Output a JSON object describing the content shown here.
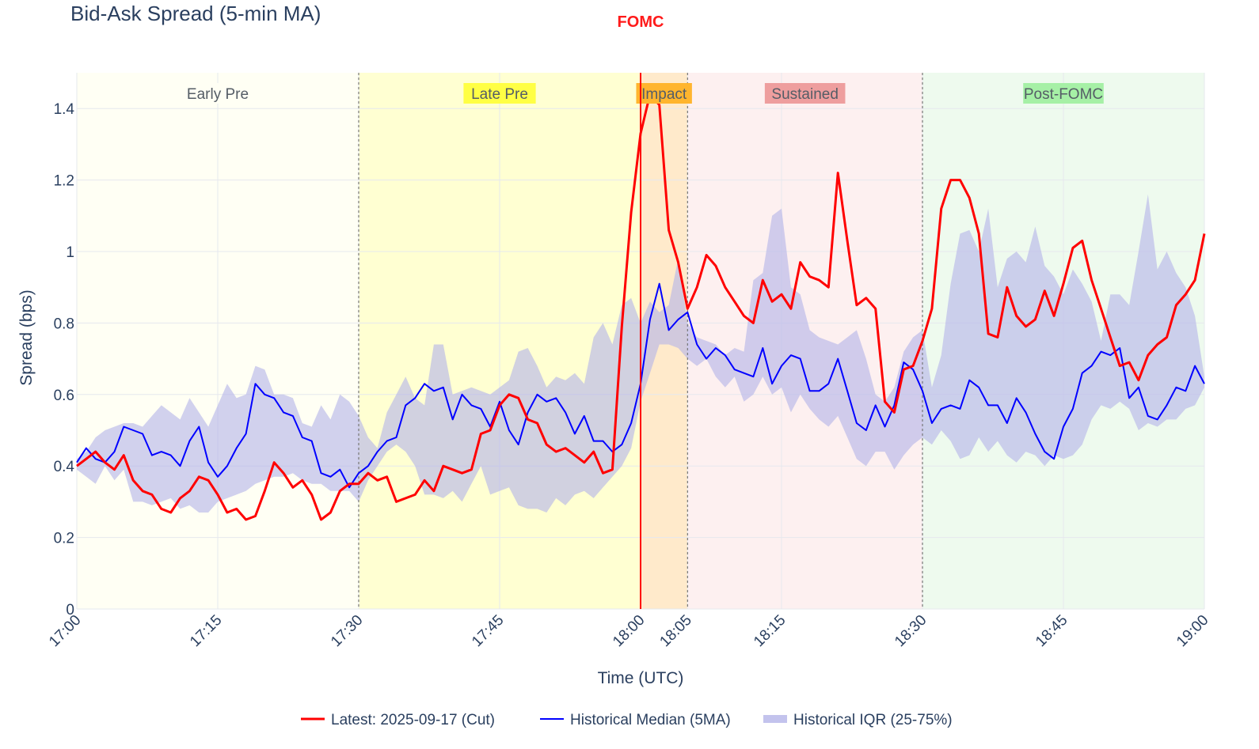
{
  "chart_data": {
    "type": "line",
    "title": "Bid-Ask Spread (5-min MA)",
    "xlabel": "Time (UTC)",
    "ylabel": "Spread (bps)",
    "x_range": [
      "17:00",
      "19:00"
    ],
    "ylim": [
      0,
      1.5
    ],
    "x_tick_labels": [
      "17:00",
      "17:15",
      "17:30",
      "17:45",
      "18:00",
      "18:05",
      "18:15",
      "18:30",
      "18:45",
      "19:00"
    ],
    "y_tick_labels": [
      "0",
      "0.2",
      "0.4",
      "0.6",
      "0.8",
      "1",
      "1.2",
      "1.4"
    ],
    "grid": true,
    "legend_position": "bottom-center",
    "annotation": {
      "text": "FOMC",
      "x": "18:00",
      "color": "#ff0000"
    },
    "phases": [
      {
        "label": "Early Pre",
        "start": "17:00",
        "end": "17:30",
        "fill": "#fffff4",
        "label_bg": "#fffff4"
      },
      {
        "label": "Late Pre",
        "start": "17:30",
        "end": "18:00",
        "fill": "#ffffd2",
        "label_bg": "#ffff44"
      },
      {
        "label": "Impact",
        "start": "18:00",
        "end": "18:05",
        "fill": "#ffeacb",
        "label_bg": "#ffb52e"
      },
      {
        "label": "Sustained",
        "start": "18:05",
        "end": "18:30",
        "fill": "#fdf0f0",
        "label_bg": "#ee9e9e"
      },
      {
        "label": "Post-FOMC",
        "start": "18:30",
        "end": "19:00",
        "fill": "#eefaee",
        "label_bg": "#a6f0a6"
      }
    ],
    "colors": {
      "latest": "#ff0000",
      "median": "#0000ff",
      "iqr": "#b4b4e8"
    },
    "series": [
      {
        "name": "Latest: 2025-09-17 (Cut)",
        "x_minutes_after_1700": [
          0,
          1,
          2,
          3,
          4,
          5,
          6,
          7,
          8,
          9,
          10,
          11,
          12,
          13,
          14,
          15,
          16,
          17,
          18,
          19,
          20,
          21,
          22,
          23,
          24,
          25,
          26,
          27,
          28,
          29,
          30,
          31,
          32,
          33,
          34,
          35,
          36,
          37,
          38,
          39,
          40,
          41,
          42,
          43,
          44,
          45,
          46,
          47,
          48,
          49,
          50,
          51,
          52,
          53,
          54,
          55,
          56,
          57,
          58,
          59,
          60,
          61,
          62,
          63,
          64,
          65,
          66,
          67,
          68,
          69,
          70,
          71,
          72,
          73,
          74,
          75,
          76,
          77,
          78,
          79,
          80,
          81,
          82,
          83,
          84,
          85,
          86,
          87,
          88,
          89,
          90,
          91,
          92,
          93,
          94,
          95,
          96,
          97,
          98,
          99,
          100,
          101,
          102,
          103,
          104,
          105,
          106,
          107,
          108,
          109,
          110,
          111,
          112,
          113,
          114,
          115,
          116,
          117,
          118,
          119,
          120
        ],
        "values": [
          0.4,
          0.42,
          0.44,
          0.41,
          0.39,
          0.43,
          0.36,
          0.33,
          0.32,
          0.28,
          0.27,
          0.31,
          0.33,
          0.37,
          0.36,
          0.32,
          0.27,
          0.28,
          0.25,
          0.26,
          0.33,
          0.41,
          0.38,
          0.34,
          0.36,
          0.32,
          0.25,
          0.27,
          0.33,
          0.35,
          0.35,
          0.38,
          0.36,
          0.37,
          0.3,
          0.31,
          0.32,
          0.36,
          0.33,
          0.4,
          0.39,
          0.38,
          0.39,
          0.49,
          0.5,
          0.57,
          0.6,
          0.59,
          0.53,
          0.52,
          0.46,
          0.44,
          0.45,
          0.43,
          0.41,
          0.44,
          0.38,
          0.39,
          0.79,
          1.11,
          1.33,
          1.44,
          1.41,
          1.06,
          0.97,
          0.84,
          0.9,
          0.99,
          0.96,
          0.9,
          0.86,
          0.82,
          0.8,
          0.92,
          0.86,
          0.88,
          0.84,
          0.97,
          0.93,
          0.92,
          0.9,
          1.22,
          1.03,
          0.85,
          0.87,
          0.84,
          0.58,
          0.55,
          0.67,
          0.68,
          0.75,
          0.84,
          1.12,
          1.2,
          1.2,
          1.15,
          1.05,
          0.77,
          0.76,
          0.9,
          0.82,
          0.79,
          0.81,
          0.89,
          0.82,
          0.91,
          1.01,
          1.03,
          0.92,
          0.84,
          0.76,
          0.68,
          0.69,
          0.64,
          0.71,
          0.74,
          0.76,
          0.85,
          0.88,
          0.92,
          1.05
        ]
      },
      {
        "name": "Historical Median (5MA)",
        "x_minutes_after_1700": [
          0,
          1,
          2,
          3,
          4,
          5,
          6,
          7,
          8,
          9,
          10,
          11,
          12,
          13,
          14,
          15,
          16,
          17,
          18,
          19,
          20,
          21,
          22,
          23,
          24,
          25,
          26,
          27,
          28,
          29,
          30,
          31,
          32,
          33,
          34,
          35,
          36,
          37,
          38,
          39,
          40,
          41,
          42,
          43,
          44,
          45,
          46,
          47,
          48,
          49,
          50,
          51,
          52,
          53,
          54,
          55,
          56,
          57,
          58,
          59,
          60,
          61,
          62,
          63,
          64,
          65,
          66,
          67,
          68,
          69,
          70,
          71,
          72,
          73,
          74,
          75,
          76,
          77,
          78,
          79,
          80,
          81,
          82,
          83,
          84,
          85,
          86,
          87,
          88,
          89,
          90,
          91,
          92,
          93,
          94,
          95,
          96,
          97,
          98,
          99,
          100,
          101,
          102,
          103,
          104,
          105,
          106,
          107,
          108,
          109,
          110,
          111,
          112,
          113,
          114,
          115,
          116,
          117,
          118,
          119,
          120
        ],
        "values": [
          0.41,
          0.45,
          0.42,
          0.41,
          0.44,
          0.51,
          0.5,
          0.49,
          0.43,
          0.44,
          0.43,
          0.4,
          0.47,
          0.51,
          0.41,
          0.37,
          0.4,
          0.45,
          0.49,
          0.63,
          0.6,
          0.59,
          0.55,
          0.54,
          0.48,
          0.47,
          0.38,
          0.37,
          0.39,
          0.34,
          0.38,
          0.4,
          0.44,
          0.47,
          0.48,
          0.57,
          0.59,
          0.63,
          0.61,
          0.62,
          0.53,
          0.6,
          0.57,
          0.56,
          0.51,
          0.58,
          0.5,
          0.46,
          0.55,
          0.6,
          0.58,
          0.59,
          0.55,
          0.49,
          0.54,
          0.47,
          0.47,
          0.44,
          0.46,
          0.52,
          0.63,
          0.81,
          0.91,
          0.78,
          0.81,
          0.83,
          0.74,
          0.7,
          0.73,
          0.71,
          0.67,
          0.66,
          0.65,
          0.73,
          0.63,
          0.68,
          0.71,
          0.7,
          0.61,
          0.61,
          0.63,
          0.7,
          0.61,
          0.52,
          0.5,
          0.57,
          0.51,
          0.57,
          0.69,
          0.67,
          0.61,
          0.52,
          0.56,
          0.57,
          0.56,
          0.64,
          0.62,
          0.57,
          0.57,
          0.52,
          0.59,
          0.55,
          0.49,
          0.44,
          0.42,
          0.51,
          0.56,
          0.66,
          0.68,
          0.72,
          0.71,
          0.73,
          0.59,
          0.62,
          0.54,
          0.53,
          0.57,
          0.62,
          0.61,
          0.68,
          0.63
        ]
      },
      {
        "name": "Historical IQR (25-75%)",
        "x_minutes_after_1700": [
          0,
          1,
          2,
          3,
          4,
          5,
          6,
          7,
          8,
          9,
          10,
          11,
          12,
          13,
          14,
          15,
          16,
          17,
          18,
          19,
          20,
          21,
          22,
          23,
          24,
          25,
          26,
          27,
          28,
          29,
          30,
          31,
          32,
          33,
          34,
          35,
          36,
          37,
          38,
          39,
          40,
          41,
          42,
          43,
          44,
          45,
          46,
          47,
          48,
          49,
          50,
          51,
          52,
          53,
          54,
          55,
          56,
          57,
          58,
          59,
          60,
          61,
          62,
          63,
          64,
          65,
          66,
          67,
          68,
          69,
          70,
          71,
          72,
          73,
          74,
          75,
          76,
          77,
          78,
          79,
          80,
          81,
          82,
          83,
          84,
          85,
          86,
          87,
          88,
          89,
          90,
          91,
          92,
          93,
          94,
          95,
          96,
          97,
          98,
          99,
          100,
          101,
          102,
          103,
          104,
          105,
          106,
          107,
          108,
          109,
          110,
          111,
          112,
          113,
          114,
          115,
          116,
          117,
          118,
          119,
          120
        ],
        "upper": [
          0.42,
          0.44,
          0.48,
          0.5,
          0.51,
          0.52,
          0.52,
          0.51,
          0.54,
          0.57,
          0.55,
          0.53,
          0.59,
          0.55,
          0.51,
          0.57,
          0.63,
          0.59,
          0.6,
          0.68,
          0.67,
          0.6,
          0.6,
          0.59,
          0.52,
          0.51,
          0.57,
          0.53,
          0.6,
          0.58,
          0.54,
          0.48,
          0.45,
          0.55,
          0.6,
          0.65,
          0.59,
          0.57,
          0.74,
          0.74,
          0.6,
          0.61,
          0.62,
          0.61,
          0.6,
          0.62,
          0.64,
          0.72,
          0.73,
          0.68,
          0.62,
          0.65,
          0.64,
          0.66,
          0.63,
          0.76,
          0.8,
          0.74,
          0.85,
          0.87,
          0.8,
          0.86,
          0.83,
          0.85,
          0.98,
          0.8,
          0.76,
          0.75,
          0.74,
          0.71,
          0.73,
          0.72,
          0.92,
          0.94,
          1.1,
          1.12,
          0.9,
          0.88,
          0.78,
          0.76,
          0.75,
          0.74,
          0.76,
          0.78,
          0.7,
          0.6,
          0.58,
          0.62,
          0.72,
          0.76,
          0.78,
          0.62,
          0.71,
          0.91,
          1.05,
          1.06,
          1.0,
          1.12,
          0.9,
          0.98,
          1.0,
          0.97,
          1.07,
          0.96,
          0.93,
          0.88,
          0.95,
          0.91,
          0.86,
          0.75,
          0.88,
          0.88,
          0.85,
          1.0,
          1.16,
          0.95,
          1.0,
          0.94,
          0.9,
          0.82,
          0.65
        ],
        "lower": [
          0.39,
          0.37,
          0.35,
          0.4,
          0.36,
          0.39,
          0.3,
          0.3,
          0.29,
          0.3,
          0.31,
          0.28,
          0.29,
          0.27,
          0.27,
          0.3,
          0.31,
          0.32,
          0.33,
          0.35,
          0.36,
          0.37,
          0.37,
          0.38,
          0.36,
          0.35,
          0.35,
          0.33,
          0.33,
          0.33,
          0.3,
          0.36,
          0.4,
          0.44,
          0.46,
          0.44,
          0.4,
          0.32,
          0.32,
          0.31,
          0.33,
          0.3,
          0.35,
          0.4,
          0.32,
          0.33,
          0.34,
          0.29,
          0.28,
          0.28,
          0.27,
          0.31,
          0.29,
          0.32,
          0.33,
          0.31,
          0.34,
          0.37,
          0.4,
          0.45,
          0.58,
          0.66,
          0.74,
          0.74,
          0.73,
          0.7,
          0.68,
          0.7,
          0.65,
          0.62,
          0.65,
          0.58,
          0.6,
          0.65,
          0.6,
          0.62,
          0.55,
          0.6,
          0.56,
          0.53,
          0.51,
          0.54,
          0.48,
          0.42,
          0.4,
          0.44,
          0.44,
          0.39,
          0.43,
          0.46,
          0.48,
          0.46,
          0.5,
          0.47,
          0.42,
          0.43,
          0.48,
          0.44,
          0.47,
          0.43,
          0.41,
          0.44,
          0.43,
          0.4,
          0.43,
          0.42,
          0.43,
          0.46,
          0.53,
          0.57,
          0.56,
          0.58,
          0.56,
          0.5,
          0.52,
          0.51,
          0.53,
          0.53,
          0.56,
          0.57,
          0.62
        ]
      }
    ],
    "legend": [
      {
        "label": "Latest: 2025-09-17 (Cut)",
        "kind": "line-thick",
        "color": "#ff0000"
      },
      {
        "label": "Historical Median (5MA)",
        "kind": "line-thin",
        "color": "#0000ff"
      },
      {
        "label": "Historical IQR (25-75%)",
        "kind": "band",
        "color": "#b4b4e8"
      }
    ]
  }
}
